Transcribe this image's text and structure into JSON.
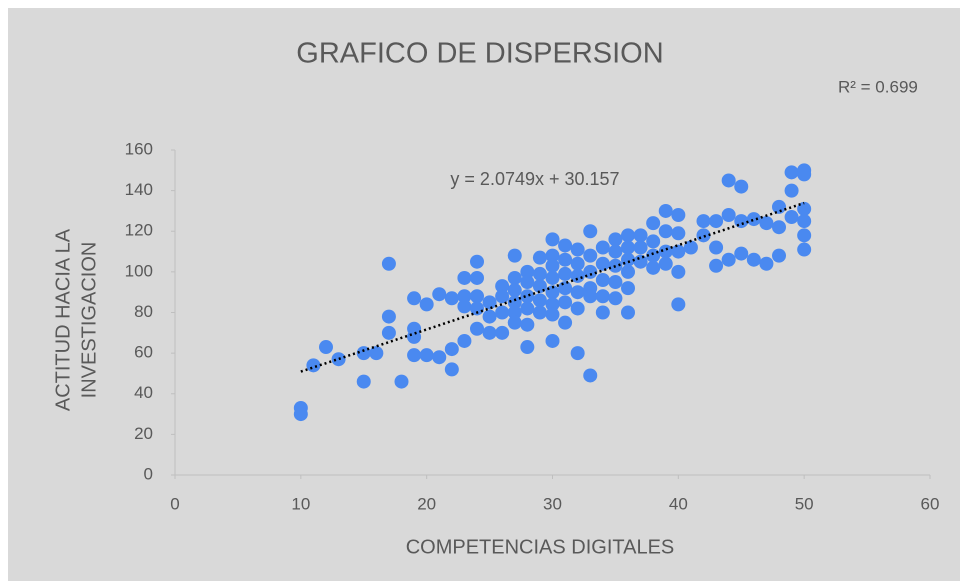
{
  "chart_data": {
    "type": "scatter",
    "title": "GRAFICO DE DISPERSION",
    "r_squared_label": "R² = 0.699",
    "x_label": "COMPETENCIAS DIGITALES",
    "y_label": [
      "ACTITUD HACIA LA",
      "INVESTIGACION"
    ],
    "color": "#4a89f0",
    "trendline": {
      "slope": 2.0749,
      "intercept": 30.157,
      "label": "y = 2.0749x + 30.157",
      "color": "#000000"
    },
    "x": [
      10,
      10,
      11,
      12,
      13,
      15,
      15,
      16,
      17,
      17,
      17,
      18,
      19,
      19,
      19,
      19,
      20,
      20,
      21,
      21,
      22,
      22,
      22,
      23,
      23,
      23,
      23,
      24,
      24,
      24,
      24,
      24,
      25,
      25,
      25,
      26,
      26,
      26,
      26,
      27,
      27,
      27,
      27,
      27,
      27,
      28,
      28,
      28,
      28,
      28,
      28,
      29,
      29,
      29,
      29,
      29,
      30,
      30,
      30,
      30,
      30,
      30,
      30,
      30,
      31,
      31,
      31,
      31,
      31,
      31,
      32,
      32,
      32,
      32,
      32,
      32,
      33,
      33,
      33,
      33,
      33,
      33,
      34,
      34,
      34,
      34,
      34,
      35,
      35,
      35,
      35,
      35,
      36,
      36,
      36,
      36,
      36,
      36,
      37,
      37,
      37,
      38,
      38,
      38,
      38,
      39,
      39,
      39,
      39,
      40,
      40,
      40,
      40,
      40,
      41,
      42,
      42,
      43,
      43,
      43,
      44,
      44,
      44,
      45,
      45,
      45,
      46,
      46,
      47,
      47,
      48,
      48,
      48,
      49,
      49,
      49,
      50,
      50,
      50,
      50,
      50,
      50
    ],
    "y": [
      33,
      30,
      54,
      63,
      57,
      60,
      46,
      60,
      104,
      78,
      70,
      46,
      87,
      72,
      68,
      59,
      84,
      59,
      89,
      58,
      87,
      62,
      52,
      97,
      88,
      83,
      66,
      105,
      97,
      88,
      82,
      72,
      85,
      78,
      70,
      93,
      88,
      80,
      70,
      108,
      97,
      91,
      85,
      80,
      75,
      100,
      95,
      88,
      82,
      74,
      63,
      107,
      99,
      93,
      86,
      80,
      116,
      108,
      103,
      97,
      90,
      84,
      79,
      66,
      113,
      106,
      99,
      92,
      85,
      75,
      111,
      104,
      98,
      90,
      82,
      60,
      120,
      108,
      100,
      92,
      88,
      49,
      112,
      104,
      96,
      88,
      80,
      116,
      110,
      103,
      95,
      87,
      118,
      112,
      106,
      100,
      92,
      80,
      118,
      112,
      105,
      124,
      115,
      108,
      102,
      130,
      120,
      110,
      104,
      128,
      119,
      110,
      100,
      84,
      112,
      125,
      118,
      125,
      112,
      103,
      145,
      128,
      106,
      142,
      125,
      109,
      126,
      106,
      124,
      104,
      132,
      122,
      108,
      149,
      140,
      127,
      150,
      148,
      131,
      125,
      118,
      111
    ],
    "xlim": [
      0,
      60
    ],
    "ylim": [
      0,
      160
    ],
    "xticks": [
      0,
      10,
      20,
      30,
      40,
      50,
      60
    ],
    "yticks": [
      0,
      20,
      40,
      60,
      80,
      100,
      120,
      140,
      160
    ]
  }
}
